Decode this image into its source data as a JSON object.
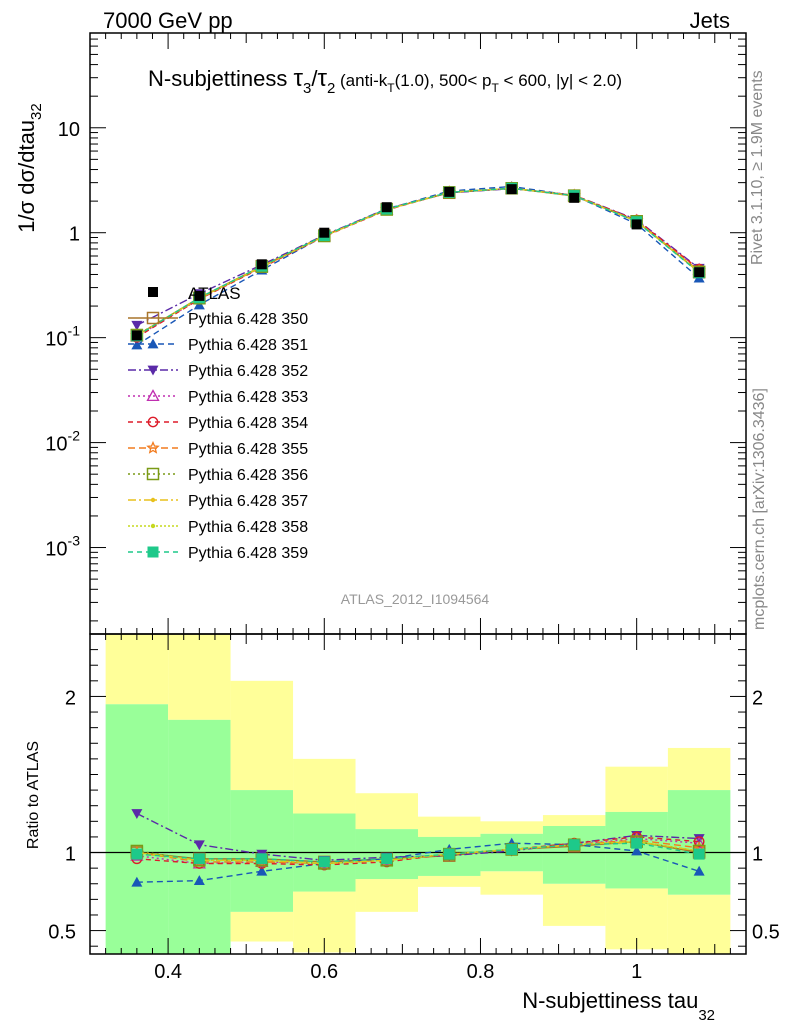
{
  "header": {
    "left": "7000 GeV pp",
    "right": "Jets"
  },
  "title": {
    "prefix": "N-subjettiness ",
    "tau": "τ",
    "num_sub": "3",
    "slash": "/",
    "den_sub": "2",
    "cut_a": " (anti-k",
    "kt_sub": "T",
    "cut_b": "(1.0), 500< p",
    "pt_sub": "T",
    "cut_c": " < 600, |y| < 2.0)"
  },
  "axes": {
    "main_ylabel": "1/σ dσ/dtau",
    "main_ylabel_sub": "32",
    "ratio_ylabel": "Ratio to ATLAS",
    "xlabel": "N-subjettiness tau",
    "xlabel_sub": "32",
    "main_yticks": [
      {
        "base": "10",
        "exp": "-3",
        "value": 0.001
      },
      {
        "base": "10",
        "exp": "-2",
        "value": 0.01
      },
      {
        "base": "10",
        "exp": "-1",
        "value": 0.1
      },
      {
        "base": "1",
        "exp": "",
        "value": 1
      },
      {
        "base": "10",
        "exp": "",
        "value": 10
      }
    ],
    "ratio_yticks": [
      {
        "label": "0.5",
        "value": 0.5
      },
      {
        "label": "1",
        "value": 1
      },
      {
        "label": "2",
        "value": 2
      }
    ],
    "xticks": [
      {
        "label": "0.4",
        "value": 0.4
      },
      {
        "label": "0.6",
        "value": 0.6
      },
      {
        "label": "0.8",
        "value": 0.8
      },
      {
        "label": "1",
        "value": 1.0
      }
    ]
  },
  "side_text": {
    "rivet": "Rivet 3.1.10, ≥ 1.9M events",
    "mcplots": "mcplots.cern.ch [arXiv:1306.3436]"
  },
  "analysis_label": "ATLAS_2012_I1094564",
  "colors": {
    "band_inner": "#99ff99",
    "band_outer": "#ffff99"
  },
  "chart_data": {
    "type": "line",
    "log_y_main": true,
    "xlim": [
      0.3,
      1.14
    ],
    "ylim_main": [
      0.00015,
      80
    ],
    "ylim_ratio": [
      0.35,
      2.4
    ],
    "bin_edges": [
      0.32,
      0.4,
      0.48,
      0.56,
      0.64,
      0.72,
      0.8,
      0.88,
      0.96,
      1.04,
      1.12
    ],
    "x": [
      0.36,
      0.44,
      0.52,
      0.6,
      0.68,
      0.76,
      0.84,
      0.92,
      1.0,
      1.08
    ],
    "data": {
      "name": "ATLAS",
      "values": [
        0.105,
        0.25,
        0.5,
        1.0,
        1.75,
        2.45,
        2.6,
        2.15,
        1.2,
        0.42
      ]
    },
    "bands": {
      "inner_low": [
        0.35,
        0.35,
        0.62,
        0.75,
        0.83,
        0.85,
        0.88,
        0.8,
        0.77,
        0.73
      ],
      "inner_high": [
        1.95,
        1.85,
        1.4,
        1.25,
        1.15,
        1.1,
        1.12,
        1.17,
        1.26,
        1.4
      ],
      "outer_low": [
        0.35,
        0.35,
        0.43,
        0.36,
        0.62,
        0.78,
        0.73,
        0.53,
        0.38,
        0.35
      ],
      "outer_high": [
        2.4,
        2.4,
        2.1,
        1.6,
        1.38,
        1.23,
        1.2,
        1.24,
        1.55,
        1.67
      ]
    },
    "series": [
      {
        "name": "Pythia 6.428 350",
        "color": "#a8752b",
        "marker": "square-open",
        "dash": "solid",
        "ratio": [
          1.0,
          0.96,
          0.96,
          0.94,
          0.96,
          0.98,
          1.02,
          1.04,
          1.07,
          1.0
        ]
      },
      {
        "name": "Pythia 6.428 351",
        "color": "#1957b7",
        "marker": "triangle-up",
        "dash": "6,4",
        "ratio": [
          0.81,
          0.82,
          0.88,
          0.93,
          0.96,
          1.02,
          1.06,
          1.05,
          1.01,
          0.88
        ]
      },
      {
        "name": "Pythia 6.428 352",
        "color": "#5a2aa8",
        "marker": "triangle-down",
        "dash": "8,3,2,3",
        "ratio": [
          1.25,
          1.05,
          0.99,
          0.95,
          0.97,
          0.98,
          1.01,
          1.06,
          1.11,
          1.09
        ]
      },
      {
        "name": "Pythia 6.428 353",
        "color": "#c02fb0",
        "marker": "triangle-open",
        "dash": "2,3",
        "ratio": [
          0.98,
          0.93,
          0.94,
          0.93,
          0.95,
          0.99,
          1.02,
          1.05,
          1.09,
          1.06
        ]
      },
      {
        "name": "Pythia 6.428 354",
        "color": "#dd1c2a",
        "marker": "circle-open",
        "dash": "5,4",
        "ratio": [
          0.96,
          0.93,
          0.93,
          0.92,
          0.94,
          0.99,
          1.02,
          1.06,
          1.1,
          1.07
        ]
      },
      {
        "name": "Pythia 6.428 355",
        "color": "#f27b1e",
        "marker": "star-open",
        "dash": "7,4",
        "ratio": [
          1.0,
          0.94,
          0.94,
          0.93,
          0.95,
          0.99,
          1.02,
          1.05,
          1.08,
          1.03
        ]
      },
      {
        "name": "Pythia 6.428 356",
        "color": "#7a9a16",
        "marker": "square-open",
        "dash": "2,3",
        "ratio": [
          1.01,
          0.95,
          0.95,
          0.93,
          0.95,
          0.99,
          1.02,
          1.05,
          1.07,
          1.01
        ]
      },
      {
        "name": "Pythia 6.428 357",
        "color": "#e8c11c",
        "marker": "dot",
        "dash": "8,3,2,3",
        "ratio": [
          1.0,
          0.95,
          0.95,
          0.93,
          0.95,
          0.99,
          1.02,
          1.05,
          1.07,
          1.01
        ]
      },
      {
        "name": "Pythia 6.428 358",
        "color": "#c6d81e",
        "marker": "dot",
        "dash": "2,2",
        "ratio": [
          1.0,
          0.95,
          0.95,
          0.93,
          0.95,
          0.99,
          1.02,
          1.05,
          1.07,
          1.01
        ]
      },
      {
        "name": "Pythia 6.428 359",
        "color": "#1ec98a",
        "marker": "square",
        "dash": "5,4",
        "ratio": [
          0.99,
          0.96,
          0.96,
          0.94,
          0.96,
          0.99,
          1.02,
          1.05,
          1.06,
          0.99
        ]
      }
    ]
  }
}
